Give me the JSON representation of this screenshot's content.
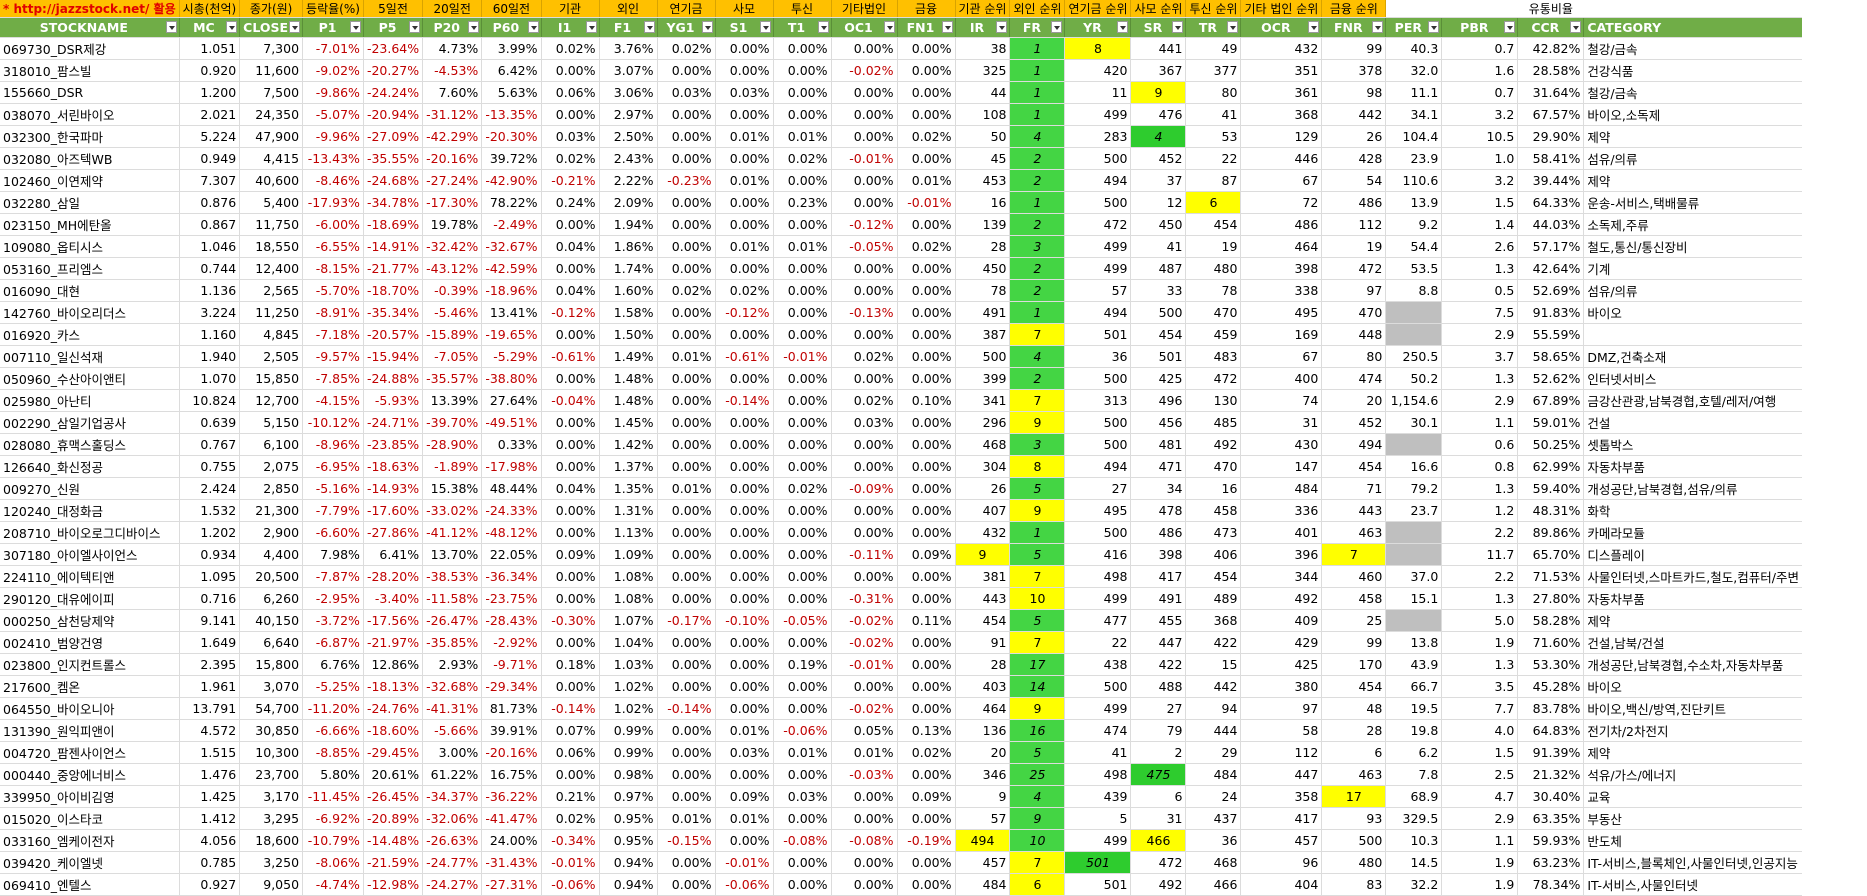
{
  "top_labels": [
    "* http://jazzstock.net/ 활용",
    "시총(천억)",
    "종가(원)",
    "등락율(%)",
    "5일전",
    "20일전",
    "60일전",
    "기관",
    "외인",
    "연기금",
    "사모",
    "투신",
    "기타법인",
    "금융",
    "기관 순위",
    "외인 순위",
    "연기금 순위",
    "사모 순위",
    "투신 순위",
    "기타 법인 순위",
    "금융 순위",
    "",
    "",
    "유통비율"
  ],
  "headers": [
    "STOCKNAME",
    "MC",
    "CLOSE",
    "P1",
    "P5",
    "P20",
    "P60",
    "I1",
    "F1",
    "YG1",
    "S1",
    "T1",
    "OC1",
    "FN1",
    "IR",
    "FR",
    "YR",
    "SR",
    "TR",
    "OCR",
    "FNR",
    "PER",
    "PBR",
    "CCR",
    "CATEGORY"
  ],
  "rows": [
    [
      "069730_DSR제강",
      "1.051",
      "7,300",
      "-7.01%",
      "-23.64%",
      "4.73%",
      "3.99%",
      "0.02%",
      "3.76%",
      "0.02%",
      "0.00%",
      "0.00%",
      "0.00%",
      "0.00%",
      "38",
      "1",
      "8",
      "441",
      "49",
      "432",
      "99",
      "40.3",
      "0.7",
      "42.82%",
      "철강/금속"
    ],
    [
      "318010_팜스빌",
      "0.920",
      "11,600",
      "-9.02%",
      "-20.27%",
      "-4.53%",
      "6.42%",
      "0.00%",
      "3.07%",
      "0.00%",
      "0.00%",
      "0.00%",
      "-0.02%",
      "0.00%",
      "325",
      "1",
      "420",
      "367",
      "377",
      "351",
      "378",
      "32.0",
      "1.6",
      "28.58%",
      "건강식품"
    ],
    [
      "155660_DSR",
      "1.200",
      "7,500",
      "-9.86%",
      "-24.24%",
      "7.60%",
      "5.63%",
      "0.06%",
      "3.06%",
      "0.03%",
      "0.03%",
      "0.00%",
      "0.00%",
      "0.00%",
      "44",
      "1",
      "11",
      "9",
      "80",
      "361",
      "98",
      "11.1",
      "0.7",
      "31.64%",
      "철강/금속"
    ],
    [
      "038070_서린바이오",
      "2.021",
      "24,350",
      "-5.07%",
      "-20.94%",
      "-31.12%",
      "-13.35%",
      "0.00%",
      "2.97%",
      "0.00%",
      "0.00%",
      "0.00%",
      "0.00%",
      "0.00%",
      "108",
      "1",
      "499",
      "476",
      "41",
      "368",
      "442",
      "34.1",
      "3.2",
      "67.57%",
      "바이오,소독제"
    ],
    [
      "032300_한국파마",
      "5.224",
      "47,900",
      "-9.96%",
      "-27.09%",
      "-42.29%",
      "-20.30%",
      "0.03%",
      "2.50%",
      "0.00%",
      "0.01%",
      "0.01%",
      "0.00%",
      "0.02%",
      "50",
      "4",
      "283",
      "4",
      "53",
      "129",
      "26",
      "104.4",
      "10.5",
      "29.90%",
      "제약"
    ],
    [
      "032080_아즈텍WB",
      "0.949",
      "4,415",
      "-13.43%",
      "-35.55%",
      "-20.16%",
      "39.72%",
      "0.02%",
      "2.43%",
      "0.00%",
      "0.00%",
      "0.02%",
      "-0.01%",
      "0.00%",
      "45",
      "2",
      "500",
      "452",
      "22",
      "446",
      "428",
      "23.9",
      "1.0",
      "58.41%",
      "섬유/의류"
    ],
    [
      "102460_이연제약",
      "7.307",
      "40,600",
      "-8.46%",
      "-24.68%",
      "-27.24%",
      "-42.90%",
      "-0.21%",
      "2.22%",
      "-0.23%",
      "0.01%",
      "0.00%",
      "0.00%",
      "0.01%",
      "453",
      "2",
      "494",
      "37",
      "87",
      "67",
      "54",
      "110.6",
      "3.2",
      "39.44%",
      "제약"
    ],
    [
      "032280_삼일",
      "0.876",
      "5,400",
      "-17.93%",
      "-34.78%",
      "-17.30%",
      "78.22%",
      "0.24%",
      "2.09%",
      "0.00%",
      "0.00%",
      "0.23%",
      "0.00%",
      "-0.01%",
      "16",
      "1",
      "500",
      "12",
      "6",
      "72",
      "486",
      "13.9",
      "1.5",
      "64.33%",
      "운송-서비스,택배물류"
    ],
    [
      "023150_MH에탄올",
      "0.867",
      "11,750",
      "-6.00%",
      "-18.69%",
      "19.78%",
      "-2.49%",
      "0.00%",
      "1.94%",
      "0.00%",
      "0.00%",
      "0.00%",
      "-0.12%",
      "0.00%",
      "139",
      "2",
      "472",
      "450",
      "454",
      "486",
      "112",
      "9.2",
      "1.4",
      "44.03%",
      "소독제,주류"
    ],
    [
      "109080_옵티시스",
      "1.046",
      "18,550",
      "-6.55%",
      "-14.91%",
      "-32.42%",
      "-32.67%",
      "0.04%",
      "1.86%",
      "0.00%",
      "0.01%",
      "0.01%",
      "-0.05%",
      "0.02%",
      "28",
      "3",
      "499",
      "41",
      "19",
      "464",
      "19",
      "54.4",
      "2.6",
      "57.17%",
      "철도,통신/통신장비"
    ],
    [
      "053160_프리엠스",
      "0.744",
      "12,400",
      "-8.15%",
      "-21.77%",
      "-43.12%",
      "-42.59%",
      "0.00%",
      "1.74%",
      "0.00%",
      "0.00%",
      "0.00%",
      "0.00%",
      "0.00%",
      "450",
      "2",
      "499",
      "487",
      "480",
      "398",
      "472",
      "53.5",
      "1.3",
      "42.64%",
      "기계"
    ],
    [
      "016090_대현",
      "1.136",
      "2,565",
      "-5.70%",
      "-18.70%",
      "-0.39%",
      "-18.96%",
      "0.04%",
      "1.60%",
      "0.02%",
      "0.02%",
      "0.00%",
      "0.00%",
      "0.00%",
      "78",
      "2",
      "57",
      "33",
      "78",
      "338",
      "97",
      "8.8",
      "0.5",
      "52.69%",
      "섬유/의류"
    ],
    [
      "142760_바이오리더스",
      "3.224",
      "11,250",
      "-8.91%",
      "-35.34%",
      "-5.46%",
      "13.41%",
      "-0.12%",
      "1.58%",
      "0.00%",
      "-0.12%",
      "0.00%",
      "-0.13%",
      "0.00%",
      "491",
      "1",
      "494",
      "500",
      "470",
      "495",
      "470",
      "",
      "7.5",
      "91.83%",
      "바이오"
    ],
    [
      "016920_카스",
      "1.160",
      "4,845",
      "-7.18%",
      "-20.57%",
      "-15.89%",
      "-19.65%",
      "0.00%",
      "1.50%",
      "0.00%",
      "0.00%",
      "0.00%",
      "0.00%",
      "0.00%",
      "387",
      "7",
      "501",
      "454",
      "459",
      "169",
      "448",
      "",
      "2.9",
      "55.59%",
      ""
    ],
    [
      "007110_일신석재",
      "1.940",
      "2,505",
      "-9.57%",
      "-15.94%",
      "-7.05%",
      "-5.29%",
      "-0.61%",
      "1.49%",
      "0.01%",
      "-0.61%",
      "-0.01%",
      "0.02%",
      "0.00%",
      "500",
      "4",
      "36",
      "501",
      "483",
      "67",
      "80",
      "250.5",
      "3.7",
      "58.65%",
      "DMZ,건축소재"
    ],
    [
      "050960_수산아이앤티",
      "1.070",
      "15,850",
      "-7.85%",
      "-24.88%",
      "-35.57%",
      "-38.80%",
      "0.00%",
      "1.48%",
      "0.00%",
      "0.00%",
      "0.00%",
      "0.00%",
      "0.00%",
      "399",
      "2",
      "500",
      "425",
      "472",
      "400",
      "474",
      "50.2",
      "1.3",
      "52.62%",
      "인터넷서비스"
    ],
    [
      "025980_아난티",
      "10.824",
      "12,700",
      "-4.15%",
      "-5.93%",
      "13.39%",
      "27.64%",
      "-0.04%",
      "1.48%",
      "0.00%",
      "-0.14%",
      "0.00%",
      "0.02%",
      "0.10%",
      "341",
      "7",
      "313",
      "496",
      "130",
      "74",
      "20",
      "1,154.6",
      "2.9",
      "67.89%",
      "금강산관광,남북경협,호텔/레저/여행"
    ],
    [
      "002290_삼일기업공사",
      "0.639",
      "5,150",
      "-10.12%",
      "-24.71%",
      "-39.70%",
      "-49.51%",
      "0.00%",
      "1.45%",
      "0.00%",
      "0.00%",
      "0.00%",
      "0.03%",
      "0.00%",
      "296",
      "9",
      "500",
      "456",
      "485",
      "31",
      "452",
      "30.1",
      "1.1",
      "59.01%",
      "건설"
    ],
    [
      "028080_휴맥스홀딩스",
      "0.767",
      "6,100",
      "-8.96%",
      "-23.85%",
      "-28.90%",
      "0.33%",
      "0.00%",
      "1.42%",
      "0.00%",
      "0.00%",
      "0.00%",
      "0.00%",
      "0.00%",
      "468",
      "3",
      "500",
      "481",
      "492",
      "430",
      "494",
      "",
      "0.6",
      "50.25%",
      "셋톱박스"
    ],
    [
      "126640_화신정공",
      "0.755",
      "2,075",
      "-6.95%",
      "-18.63%",
      "-1.89%",
      "-17.98%",
      "0.00%",
      "1.37%",
      "0.00%",
      "0.00%",
      "0.00%",
      "0.00%",
      "0.00%",
      "304",
      "8",
      "494",
      "471",
      "470",
      "147",
      "454",
      "16.6",
      "0.8",
      "62.99%",
      "자동차부품"
    ],
    [
      "009270_신원",
      "2.424",
      "2,850",
      "-5.16%",
      "-14.93%",
      "15.38%",
      "48.44%",
      "0.04%",
      "1.35%",
      "0.01%",
      "0.00%",
      "0.02%",
      "-0.09%",
      "0.00%",
      "26",
      "5",
      "27",
      "34",
      "16",
      "484",
      "71",
      "79.2",
      "1.3",
      "59.40%",
      "개성공단,남북경협,섬유/의류"
    ],
    [
      "120240_대정화금",
      "1.532",
      "21,300",
      "-7.79%",
      "-17.60%",
      "-33.02%",
      "-24.33%",
      "0.00%",
      "1.31%",
      "0.00%",
      "0.00%",
      "0.00%",
      "0.00%",
      "0.00%",
      "407",
      "9",
      "495",
      "478",
      "458",
      "336",
      "443",
      "23.7",
      "1.2",
      "48.31%",
      "화학"
    ],
    [
      "208710_바이오로그디바이스",
      "1.202",
      "2,900",
      "-6.60%",
      "-27.86%",
      "-41.12%",
      "-48.12%",
      "0.00%",
      "1.13%",
      "0.00%",
      "0.00%",
      "0.00%",
      "0.00%",
      "0.00%",
      "432",
      "1",
      "500",
      "486",
      "473",
      "401",
      "463",
      "",
      "2.2",
      "89.86%",
      "카메라모듈"
    ],
    [
      "307180_아이엘사이언스",
      "0.934",
      "4,400",
      "7.98%",
      "6.41%",
      "13.70%",
      "22.05%",
      "0.09%",
      "1.09%",
      "0.00%",
      "0.00%",
      "0.00%",
      "-0.11%",
      "0.09%",
      "9",
      "5",
      "416",
      "398",
      "406",
      "396",
      "7",
      "",
      "11.7",
      "65.70%",
      "디스플레이"
    ],
    [
      "224110_에이텍티앤",
      "1.095",
      "20,500",
      "-7.87%",
      "-28.20%",
      "-38.53%",
      "-36.34%",
      "0.00%",
      "1.08%",
      "0.00%",
      "0.00%",
      "0.00%",
      "0.00%",
      "0.00%",
      "381",
      "7",
      "498",
      "417",
      "454",
      "344",
      "460",
      "37.0",
      "2.2",
      "71.53%",
      "사물인터넷,스마트카드,철도,컴퓨터/주변"
    ],
    [
      "290120_대유에이피",
      "0.716",
      "6,260",
      "-2.95%",
      "-3.40%",
      "-11.58%",
      "-23.75%",
      "0.00%",
      "1.08%",
      "0.00%",
      "0.00%",
      "0.00%",
      "-0.31%",
      "0.00%",
      "443",
      "10",
      "499",
      "491",
      "489",
      "492",
      "458",
      "15.1",
      "1.3",
      "27.80%",
      "자동차부품"
    ],
    [
      "000250_삼천당제약",
      "9.141",
      "40,150",
      "-3.72%",
      "-17.56%",
      "-26.47%",
      "-28.43%",
      "-0.30%",
      "1.07%",
      "-0.17%",
      "-0.10%",
      "-0.05%",
      "-0.02%",
      "0.11%",
      "454",
      "5",
      "477",
      "455",
      "368",
      "409",
      "25",
      "",
      "5.0",
      "58.28%",
      "제약"
    ],
    [
      "002410_범양건영",
      "1.649",
      "6,640",
      "-6.87%",
      "-21.97%",
      "-35.85%",
      "-2.92%",
      "0.00%",
      "1.04%",
      "0.00%",
      "0.00%",
      "0.00%",
      "-0.02%",
      "0.00%",
      "91",
      "7",
      "22",
      "447",
      "422",
      "429",
      "99",
      "13.8",
      "1.9",
      "71.60%",
      "건설,남북/건설"
    ],
    [
      "023800_인지컨트롤스",
      "2.395",
      "15,800",
      "6.76%",
      "12.86%",
      "2.93%",
      "-9.71%",
      "0.18%",
      "1.03%",
      "0.00%",
      "0.00%",
      "0.19%",
      "-0.01%",
      "0.00%",
      "28",
      "17",
      "438",
      "422",
      "15",
      "425",
      "170",
      "43.9",
      "1.3",
      "53.30%",
      "개성공단,남북경협,수소차,자동차부품"
    ],
    [
      "217600_켐온",
      "1.961",
      "3,070",
      "-5.25%",
      "-18.13%",
      "-32.68%",
      "-29.34%",
      "0.00%",
      "1.02%",
      "0.00%",
      "0.00%",
      "0.00%",
      "0.00%",
      "0.00%",
      "403",
      "14",
      "500",
      "488",
      "442",
      "380",
      "454",
      "66.7",
      "3.5",
      "45.28%",
      "바이오"
    ],
    [
      "064550_바이오니아",
      "13.791",
      "54,700",
      "-11.20%",
      "-24.76%",
      "-41.31%",
      "81.73%",
      "-0.14%",
      "1.02%",
      "-0.14%",
      "0.00%",
      "0.00%",
      "-0.02%",
      "0.00%",
      "464",
      "9",
      "499",
      "27",
      "94",
      "97",
      "48",
      "19.5",
      "7.7",
      "83.78%",
      "바이오,백신/방역,진단키트"
    ],
    [
      "131390_원익피앤이",
      "4.572",
      "30,850",
      "-6.66%",
      "-18.60%",
      "-5.66%",
      "39.91%",
      "0.07%",
      "0.99%",
      "0.00%",
      "0.01%",
      "-0.06%",
      "0.05%",
      "0.13%",
      "136",
      "16",
      "474",
      "79",
      "444",
      "58",
      "28",
      "19.8",
      "4.0",
      "64.83%",
      "전기차/2차전지"
    ],
    [
      "004720_팜젠사이언스",
      "1.515",
      "10,300",
      "-8.85%",
      "-29.45%",
      "3.00%",
      "-20.16%",
      "0.06%",
      "0.99%",
      "0.00%",
      "0.03%",
      "0.01%",
      "0.01%",
      "0.02%",
      "20",
      "5",
      "41",
      "2",
      "29",
      "112",
      "6",
      "6.2",
      "1.5",
      "91.39%",
      "제약"
    ],
    [
      "000440_중앙에너비스",
      "1.476",
      "23,700",
      "5.80%",
      "20.61%",
      "61.22%",
      "16.75%",
      "0.00%",
      "0.98%",
      "0.00%",
      "0.00%",
      "0.00%",
      "-0.03%",
      "0.00%",
      "346",
      "25",
      "498",
      "475",
      "484",
      "447",
      "463",
      "7.8",
      "2.5",
      "21.32%",
      "석유/가스/에너지"
    ],
    [
      "339950_아이비김영",
      "1.425",
      "3,170",
      "-11.45%",
      "-26.45%",
      "-34.37%",
      "-36.22%",
      "0.21%",
      "0.97%",
      "0.00%",
      "0.09%",
      "0.03%",
      "0.00%",
      "0.09%",
      "9",
      "4",
      "439",
      "6",
      "24",
      "358",
      "17",
      "68.9",
      "4.7",
      "30.40%",
      "교육"
    ],
    [
      "015020_이스타코",
      "1.412",
      "3,295",
      "-6.92%",
      "-20.89%",
      "-32.06%",
      "-41.47%",
      "0.02%",
      "0.95%",
      "0.01%",
      "0.01%",
      "0.00%",
      "0.00%",
      "0.00%",
      "57",
      "9",
      "5",
      "31",
      "437",
      "417",
      "93",
      "329.5",
      "2.9",
      "63.35%",
      "부동산"
    ],
    [
      "033160_엠케이전자",
      "4.056",
      "18,600",
      "-10.79%",
      "-14.48%",
      "-26.63%",
      "24.00%",
      "-0.34%",
      "0.95%",
      "-0.15%",
      "0.00%",
      "-0.08%",
      "-0.08%",
      "-0.19%",
      "494",
      "10",
      "499",
      "466",
      "36",
      "457",
      "500",
      "10.3",
      "1.1",
      "59.93%",
      "반도체"
    ],
    [
      "039420_케이엘넷",
      "0.785",
      "3,250",
      "-8.06%",
      "-21.59%",
      "-24.77%",
      "-31.43%",
      "-0.01%",
      "0.94%",
      "0.00%",
      "-0.01%",
      "0.00%",
      "0.00%",
      "0.00%",
      "457",
      "7",
      "501",
      "472",
      "468",
      "96",
      "480",
      "14.5",
      "1.9",
      "63.23%",
      "IT-서비스,블록체인,사물인터넷,인공지능"
    ],
    [
      "069410_엔텔스",
      "0.927",
      "9,050",
      "-4.74%",
      "-12.98%",
      "-24.27%",
      "-27.31%",
      "-0.06%",
      "0.94%",
      "0.00%",
      "-0.06%",
      "0.00%",
      "0.00%",
      "0.00%",
      "484",
      "6",
      "501",
      "492",
      "466",
      "404",
      "83",
      "32.2",
      "1.9",
      "78.34%",
      "IT-서비스,사물인터넷"
    ]
  ],
  "highlights": {
    "fr_column": "#44d544",
    "yellow": "#ffff00",
    "green": "#2ecc2e",
    "missing": "#bfbfbf",
    "header": "#70ad47",
    "top_band": "#ffc000",
    "negative": "#c00000"
  }
}
